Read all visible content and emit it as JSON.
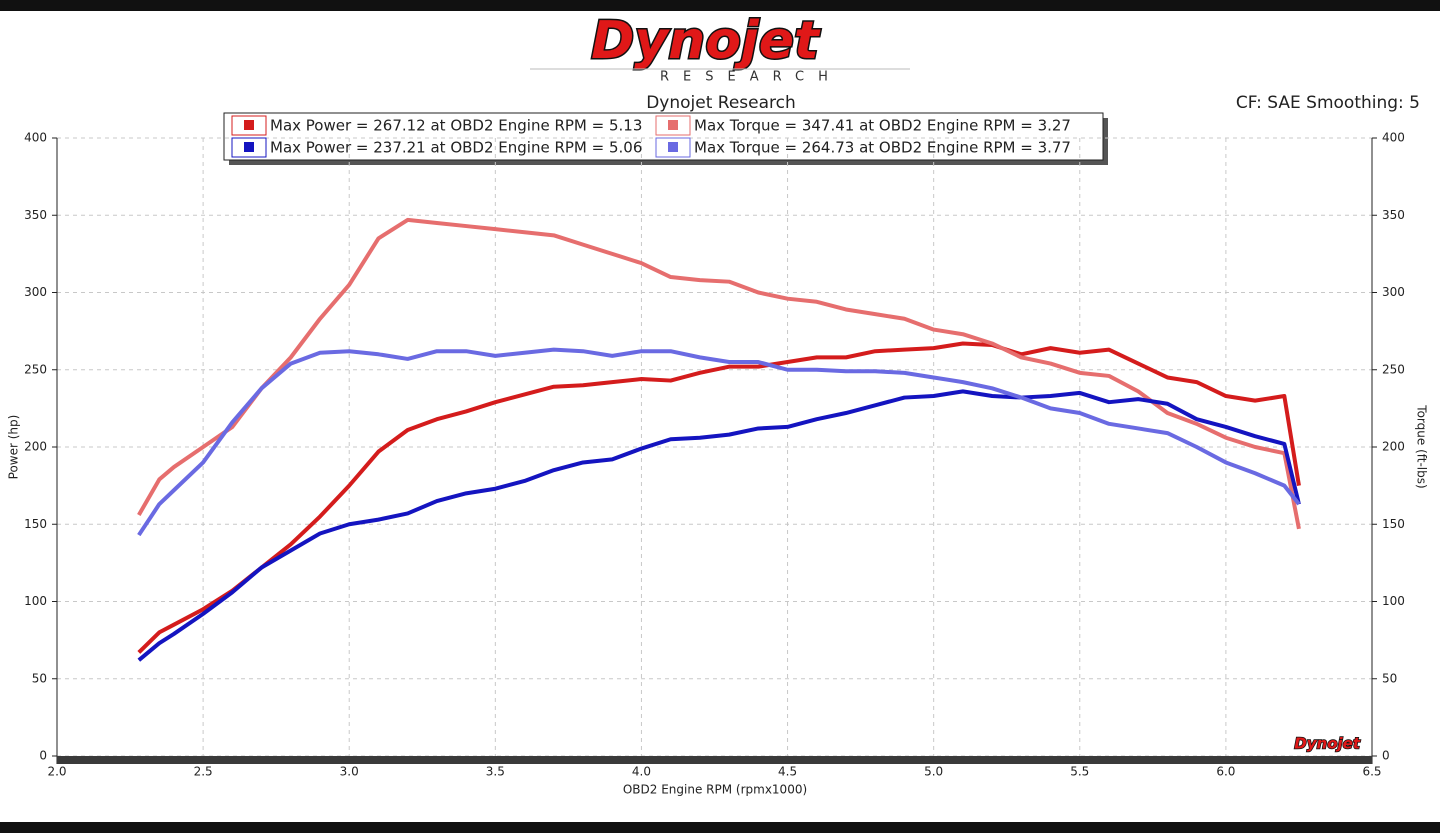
{
  "logo": {
    "name": "Dynojet",
    "tagline": "RESEARCH"
  },
  "chart_data": {
    "type": "line",
    "title": "Dynojet Research",
    "subtitle": "CF: SAE Smoothing: 5",
    "x_label": "OBD2 Engine RPM (rpmx1000)",
    "y_label": "Power (hp)",
    "y2_label": "Torque (ft-lbs)",
    "grid": true,
    "xlim": [
      2.0,
      6.5
    ],
    "xticks": [
      {
        "value": 2.0,
        "label": "2.0"
      },
      2.5,
      {
        "value": 3.0,
        "label": "3.0"
      },
      3.5,
      {
        "value": 4.0,
        "label": "4.0"
      },
      4.5,
      {
        "value": 5.0,
        "label": "5.0"
      },
      5.5,
      {
        "value": 6.0,
        "label": "6.0"
      },
      6.5
    ],
    "ylim": [
      0,
      400
    ],
    "yticks": [
      0,
      50,
      100,
      150,
      200,
      250,
      300,
      350,
      400
    ],
    "y2lim": [
      0,
      400
    ],
    "y2ticks": [
      0,
      50,
      100,
      150,
      200,
      250,
      300,
      350,
      400
    ],
    "x": [
      2.28,
      2.35,
      2.4,
      2.5,
      2.6,
      2.7,
      2.8,
      2.9,
      3.0,
      3.1,
      3.2,
      3.3,
      3.4,
      3.5,
      3.6,
      3.7,
      3.8,
      3.9,
      4.0,
      4.1,
      4.2,
      4.3,
      4.4,
      4.5,
      4.6,
      4.7,
      4.8,
      4.9,
      5.0,
      5.1,
      5.2,
      5.3,
      5.4,
      5.5,
      5.6,
      5.7,
      5.8,
      5.9,
      6.0,
      6.1,
      6.2,
      6.25
    ],
    "series": [
      {
        "name": "Max Power = 267.12 at OBD2 Engine RPM = 5.13",
        "color": "#d41c1c",
        "values": [
          67,
          80,
          85,
          95,
          107,
          122,
          137,
          155,
          175,
          197,
          211,
          218,
          223,
          229,
          234,
          239,
          240,
          242,
          244,
          243,
          248,
          252,
          252,
          255,
          258,
          258,
          262,
          263,
          264,
          267,
          266,
          260,
          264,
          261,
          263,
          254,
          245,
          242,
          233,
          230,
          233,
          175
        ]
      },
      {
        "name": "Max Torque = 347.41 at OBD2 Engine RPM = 3.27",
        "color": "#e66e6e",
        "axis": "y2",
        "values": [
          156,
          179,
          187,
          200,
          213,
          238,
          258,
          283,
          305,
          335,
          347,
          345,
          343,
          341,
          339,
          337,
          331,
          325,
          319,
          310,
          308,
          307,
          300,
          296,
          294,
          289,
          286,
          283,
          276,
          273,
          267,
          258,
          254,
          248,
          246,
          236,
          222,
          215,
          206,
          200,
          196,
          147
        ]
      },
      {
        "name": "Max Power = 237.21 at OBD2 Engine RPM = 5.06",
        "color": "#1414c0",
        "values": [
          62,
          73,
          79,
          92,
          106,
          122,
          133,
          144,
          150,
          153,
          157,
          165,
          170,
          173,
          178,
          185,
          190,
          192,
          199,
          205,
          206,
          208,
          212,
          213,
          218,
          222,
          227,
          232,
          233,
          236,
          233,
          232,
          233,
          235,
          229,
          231,
          228,
          218,
          213,
          207,
          202,
          163
        ]
      },
      {
        "name": "Max Torque = 264.73 at OBD2 Engine RPM = 3.77",
        "color": "#6a6ae2",
        "axis": "y2",
        "values": [
          143,
          163,
          172,
          190,
          216,
          238,
          254,
          261,
          262,
          260,
          257,
          262,
          262,
          259,
          261,
          263,
          262,
          259,
          262,
          262,
          258,
          255,
          255,
          250,
          250,
          249,
          249,
          248,
          245,
          242,
          238,
          232,
          225,
          222,
          215,
          212,
          209,
          200,
          190,
          183,
          175,
          163
        ]
      }
    ]
  }
}
